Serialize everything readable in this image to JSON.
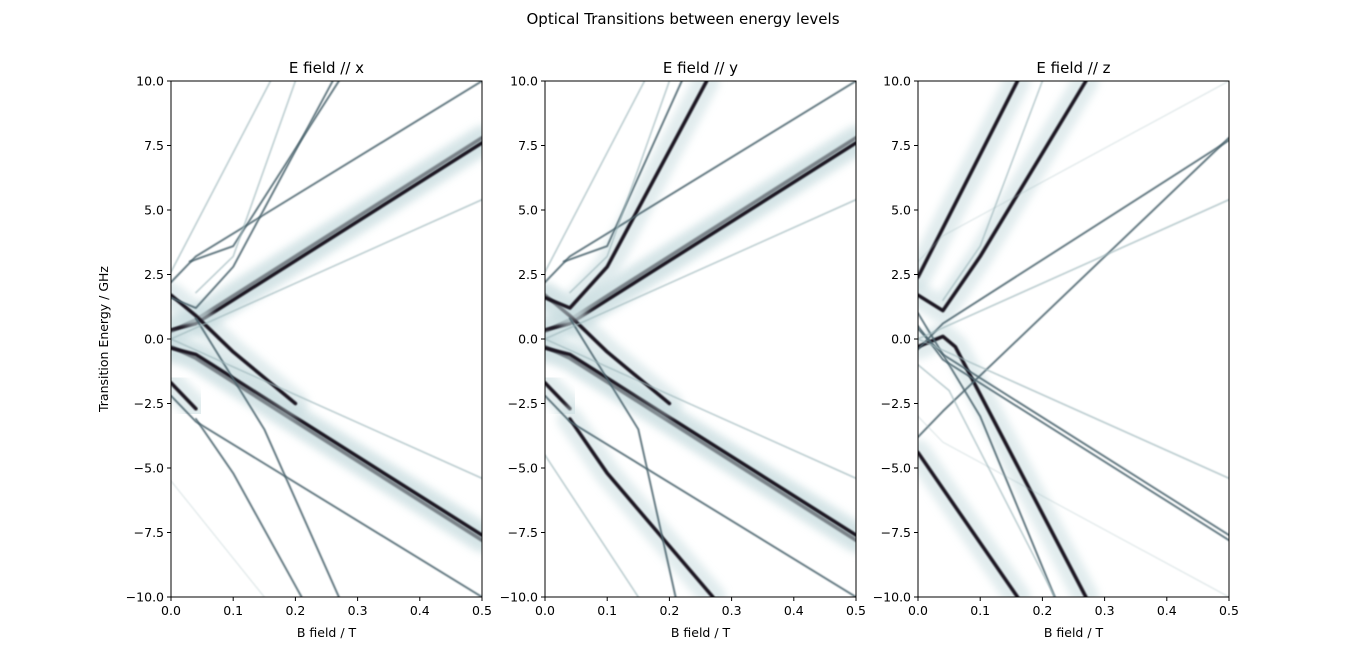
{
  "figure": {
    "suptitle": "Optical Transitions between energy levels"
  },
  "colors": {
    "background": "#ffffff",
    "line_dark": "#1a1420",
    "line_mid": "#4d6670",
    "line_faint": "#9fb8bc",
    "glow": "#c9dde0"
  },
  "chart_data": [
    {
      "type": "heatmap",
      "title": "E field // x",
      "xlabel": "B field / T",
      "ylabel": "Transition Energy / GHz",
      "xlim": [
        0.0,
        0.5
      ],
      "ylim": [
        -10.0,
        10.0
      ],
      "xticks": [
        "0.0",
        "0.1",
        "0.2",
        "0.3",
        "0.4",
        "0.5"
      ],
      "yticks": [
        "−10.0",
        "−7.5",
        "−5.0",
        "−2.5",
        "0.0",
        "2.5",
        "5.0",
        "7.5",
        "10.0"
      ],
      "colormap": "bone_r",
      "grid": false,
      "transition_lines": [
        {
          "points": [
            [
              0.0,
              0.3
            ],
            [
              0.04,
              0.75
            ],
            [
              0.5,
              7.8
            ]
          ],
          "strength": "strong"
        },
        {
          "points": [
            [
              0.0,
              0.35
            ],
            [
              0.04,
              0.6
            ],
            [
              0.5,
              7.6
            ]
          ],
          "strength": "strong"
        },
        {
          "points": [
            [
              0.0,
              -0.3
            ],
            [
              0.04,
              -0.75
            ],
            [
              0.5,
              -7.8
            ]
          ],
          "strength": "strong"
        },
        {
          "points": [
            [
              0.0,
              -0.35
            ],
            [
              0.04,
              -0.6
            ],
            [
              0.5,
              -7.6
            ]
          ],
          "strength": "strong"
        },
        {
          "points": [
            [
              0.0,
              1.7
            ],
            [
              0.04,
              0.9
            ],
            [
              0.1,
              -0.5
            ],
            [
              0.2,
              -2.5
            ]
          ],
          "strength": "strong"
        },
        {
          "points": [
            [
              0.0,
              -1.7
            ],
            [
              0.04,
              -2.7
            ]
          ],
          "strength": "strong"
        },
        {
          "points": [
            [
              0.0,
              1.6
            ],
            [
              0.04,
              1.2
            ],
            [
              0.1,
              2.8
            ],
            [
              0.26,
              10.0
            ]
          ],
          "strength": "medium"
        },
        {
          "points": [
            [
              0.04,
              -3.1
            ],
            [
              0.1,
              -5.2
            ],
            [
              0.21,
              -10.0
            ]
          ],
          "strength": "medium"
        },
        {
          "points": [
            [
              0.0,
              2.2
            ],
            [
              0.04,
              3.2
            ],
            [
              0.5,
              10.0
            ]
          ],
          "strength": "medium"
        },
        {
          "points": [
            [
              0.0,
              -2.2
            ],
            [
              0.04,
              -3.2
            ],
            [
              0.5,
              -10.0
            ]
          ],
          "strength": "medium"
        },
        {
          "points": [
            [
              0.03,
              3.0
            ],
            [
              0.1,
              3.6
            ],
            [
              0.27,
              10.0
            ]
          ],
          "strength": "medium"
        },
        {
          "points": [
            [
              0.04,
              0.8
            ],
            [
              0.15,
              -3.5
            ],
            [
              0.27,
              -10.0
            ]
          ],
          "strength": "medium"
        },
        {
          "points": [
            [
              0.0,
              2.6
            ],
            [
              0.16,
              10.0
            ]
          ],
          "strength": "faint"
        },
        {
          "points": [
            [
              0.04,
              1.8
            ],
            [
              0.1,
              3.2
            ],
            [
              0.2,
              10.0
            ]
          ],
          "strength": "faint"
        },
        {
          "points": [
            [
              0.0,
              0.0
            ],
            [
              0.5,
              -5.4
            ]
          ],
          "strength": "faint"
        },
        {
          "points": [
            [
              0.0,
              0.0
            ],
            [
              0.5,
              5.4
            ]
          ],
          "strength": "faint"
        },
        {
          "points": [
            [
              0.0,
              -5.5
            ],
            [
              0.15,
              -10.0
            ]
          ],
          "strength": "vfaint"
        }
      ]
    },
    {
      "type": "heatmap",
      "title": "E field // y",
      "xlabel": "B field / T",
      "ylabel": "",
      "xlim": [
        0.0,
        0.5
      ],
      "ylim": [
        -10.0,
        10.0
      ],
      "xticks": [
        "0.0",
        "0.1",
        "0.2",
        "0.3",
        "0.4",
        "0.5"
      ],
      "yticks": [
        "−10.0",
        "−7.5",
        "−5.0",
        "−2.5",
        "0.0",
        "2.5",
        "5.0",
        "7.5",
        "10.0"
      ],
      "colormap": "bone_r",
      "grid": false,
      "transition_lines": [
        {
          "points": [
            [
              0.0,
              0.3
            ],
            [
              0.04,
              0.75
            ],
            [
              0.5,
              7.8
            ]
          ],
          "strength": "strong"
        },
        {
          "points": [
            [
              0.0,
              0.35
            ],
            [
              0.04,
              0.6
            ],
            [
              0.5,
              7.6
            ]
          ],
          "strength": "strong"
        },
        {
          "points": [
            [
              0.0,
              -0.3
            ],
            [
              0.04,
              -0.75
            ],
            [
              0.5,
              -7.8
            ]
          ],
          "strength": "strong"
        },
        {
          "points": [
            [
              0.0,
              -0.35
            ],
            [
              0.04,
              -0.6
            ],
            [
              0.5,
              -7.6
            ]
          ],
          "strength": "strong"
        },
        {
          "points": [
            [
              0.0,
              1.7
            ],
            [
              0.04,
              0.9
            ],
            [
              0.1,
              -0.5
            ],
            [
              0.2,
              -2.5
            ]
          ],
          "strength": "strong"
        },
        {
          "points": [
            [
              0.0,
              -1.7
            ],
            [
              0.04,
              -2.7
            ]
          ],
          "strength": "strong"
        },
        {
          "points": [
            [
              0.0,
              1.6
            ],
            [
              0.04,
              1.2
            ],
            [
              0.1,
              2.8
            ],
            [
              0.26,
              10.0
            ]
          ],
          "strength": "strong"
        },
        {
          "points": [
            [
              0.04,
              -3.1
            ],
            [
              0.1,
              -5.2
            ],
            [
              0.27,
              -10.0
            ]
          ],
          "strength": "strong"
        },
        {
          "points": [
            [
              0.0,
              2.2
            ],
            [
              0.04,
              3.2
            ],
            [
              0.5,
              10.0
            ]
          ],
          "strength": "medium"
        },
        {
          "points": [
            [
              0.0,
              -2.2
            ],
            [
              0.04,
              -3.2
            ],
            [
              0.5,
              -10.0
            ]
          ],
          "strength": "medium"
        },
        {
          "points": [
            [
              0.03,
              3.0
            ],
            [
              0.1,
              3.6
            ],
            [
              0.22,
              10.0
            ]
          ],
          "strength": "medium"
        },
        {
          "points": [
            [
              0.04,
              0.8
            ],
            [
              0.15,
              -3.5
            ],
            [
              0.21,
              -10.0
            ]
          ],
          "strength": "medium"
        },
        {
          "points": [
            [
              0.0,
              2.6
            ],
            [
              0.16,
              10.0
            ]
          ],
          "strength": "faint"
        },
        {
          "points": [
            [
              0.04,
              1.8
            ],
            [
              0.1,
              3.2
            ],
            [
              0.2,
              10.0
            ]
          ],
          "strength": "faint"
        },
        {
          "points": [
            [
              0.0,
              0.0
            ],
            [
              0.5,
              -5.4
            ]
          ],
          "strength": "faint"
        },
        {
          "points": [
            [
              0.0,
              0.0
            ],
            [
              0.5,
              5.4
            ]
          ],
          "strength": "faint"
        },
        {
          "points": [
            [
              0.0,
              -4.5
            ],
            [
              0.15,
              -10.0
            ]
          ],
          "strength": "faint"
        }
      ]
    },
    {
      "type": "heatmap",
      "title": "E field // z",
      "xlabel": "B field / T",
      "ylabel": "",
      "xlim": [
        0.0,
        0.5
      ],
      "ylim": [
        -10.0,
        10.0
      ],
      "xticks": [
        "0.0",
        "0.1",
        "0.2",
        "0.3",
        "0.4",
        "0.5"
      ],
      "yticks": [
        "−10.0",
        "−7.5",
        "−5.0",
        "−2.5",
        "0.0",
        "2.5",
        "5.0",
        "7.5",
        "10.0"
      ],
      "colormap": "bone_r",
      "grid": false,
      "transition_lines": [
        {
          "points": [
            [
              0.0,
              2.4
            ],
            [
              0.16,
              10.0
            ]
          ],
          "strength": "strong"
        },
        {
          "points": [
            [
              0.0,
              1.7
            ],
            [
              0.04,
              1.1
            ],
            [
              0.1,
              3.2
            ],
            [
              0.27,
              10.0
            ]
          ],
          "strength": "strong"
        },
        {
          "points": [
            [
              0.0,
              -0.3
            ],
            [
              0.04,
              0.1
            ],
            [
              0.06,
              -0.3
            ],
            [
              0.27,
              -10.0
            ]
          ],
          "strength": "strong"
        },
        {
          "points": [
            [
              0.0,
              -4.4
            ],
            [
              0.16,
              -10.0
            ]
          ],
          "strength": "strong"
        },
        {
          "points": [
            [
              0.0,
              -3.8
            ],
            [
              0.04,
              -2.8
            ],
            [
              0.5,
              7.8
            ]
          ],
          "strength": "medium"
        },
        {
          "points": [
            [
              0.0,
              -0.4
            ],
            [
              0.04,
              0.6
            ],
            [
              0.5,
              7.7
            ]
          ],
          "strength": "medium"
        },
        {
          "points": [
            [
              0.0,
              0.4
            ],
            [
              0.04,
              -0.6
            ],
            [
              0.5,
              -7.6
            ]
          ],
          "strength": "medium"
        },
        {
          "points": [
            [
              0.0,
              0.5
            ],
            [
              0.04,
              -0.8
            ],
            [
              0.5,
              -7.8
            ]
          ],
          "strength": "medium"
        },
        {
          "points": [
            [
              0.0,
              1.0
            ],
            [
              0.1,
              -3.0
            ],
            [
              0.22,
              -10.0
            ]
          ],
          "strength": "medium"
        },
        {
          "points": [
            [
              0.0,
              -1.0
            ],
            [
              0.05,
              -2.0
            ],
            [
              0.22,
              -10.0
            ]
          ],
          "strength": "faint"
        },
        {
          "points": [
            [
              0.04,
              1.5
            ],
            [
              0.1,
              3.6
            ],
            [
              0.2,
              10.0
            ]
          ],
          "strength": "faint"
        },
        {
          "points": [
            [
              0.0,
              0.0
            ],
            [
              0.5,
              5.4
            ]
          ],
          "strength": "faint"
        },
        {
          "points": [
            [
              0.0,
              0.0
            ],
            [
              0.5,
              -5.4
            ]
          ],
          "strength": "faint"
        },
        {
          "points": [
            [
              0.0,
              3.0
            ],
            [
              0.04,
              4.0
            ],
            [
              0.5,
              10.0
            ]
          ],
          "strength": "vfaint"
        },
        {
          "points": [
            [
              0.0,
              -3.0
            ],
            [
              0.04,
              -4.0
            ],
            [
              0.5,
              -10.0
            ]
          ],
          "strength": "vfaint"
        }
      ]
    }
  ]
}
